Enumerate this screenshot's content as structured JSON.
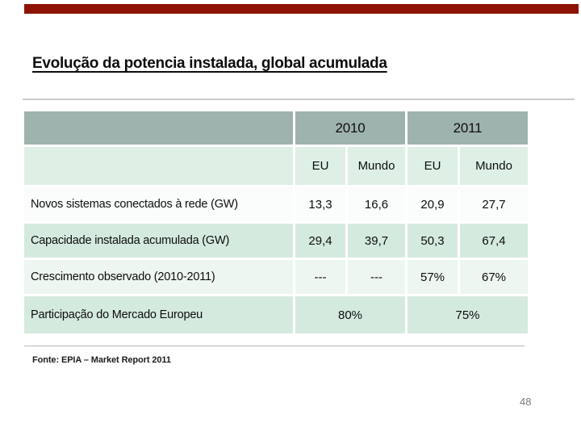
{
  "slide": {
    "title": "Evolução da potencia instalada, global acumulada",
    "source_note": "Fonte: EPIA – Market Report 2011",
    "page_number": "48"
  },
  "table": {
    "year_headers": [
      "2010",
      "2011"
    ],
    "region_headers": [
      "EU",
      "Mundo",
      "EU",
      "Mundo"
    ],
    "rows": [
      {
        "label": "Novos sistemas conectados à rede (GW)",
        "values": [
          "13,3",
          "16,6",
          "20,9",
          "27,7"
        ]
      },
      {
        "label": "Capacidade instalada acumulada (GW)",
        "values": [
          "29,4",
          "39,7",
          "50,3",
          "67,4"
        ]
      },
      {
        "label": "Crescimento observado (2010-2011)",
        "values": [
          "---",
          "---",
          "57%",
          "67%"
        ]
      },
      {
        "label": "Participação do Mercado Europeu",
        "merged_values": [
          "80%",
          "75%"
        ]
      }
    ]
  },
  "colors": {
    "accent_bar_red": "#8e1206",
    "header_sage": "#9fb3ae",
    "header_mint": "#def0e6",
    "row_mint": "#d5eade",
    "row_pale": "#fafdfb",
    "row_pale_alt": "#edf6f0",
    "text": "#0d0d0d",
    "page_number_gray": "#7a7a7a"
  }
}
